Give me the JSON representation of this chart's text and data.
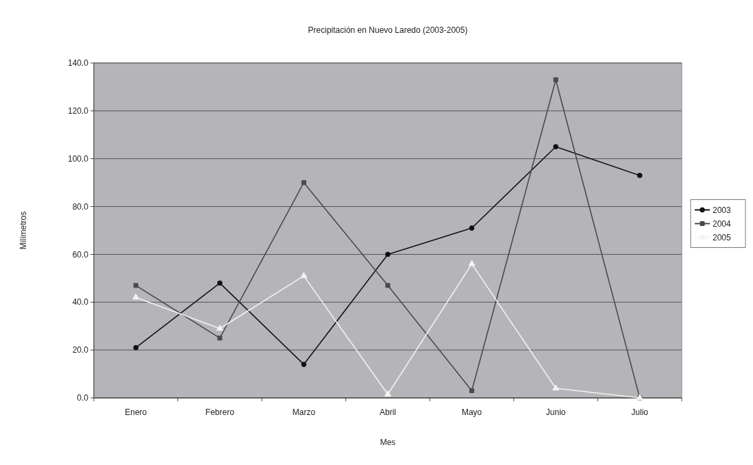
{
  "chart_data": {
    "type": "line",
    "title": "Precipitación en Nuevo Laredo (2003-2005)",
    "xlabel": "Mes",
    "ylabel": "Milímetros",
    "categories": [
      "Enero",
      "Febrero",
      "Marzo",
      "Abril",
      "Mayo",
      "Junio",
      "Julio"
    ],
    "series": [
      {
        "name": "2003",
        "color": "#111111",
        "marker": "circle",
        "values": [
          21,
          48,
          14,
          60,
          71,
          105,
          93
        ]
      },
      {
        "name": "2004",
        "color": "#4a4a4a",
        "marker": "square",
        "values": [
          47,
          25,
          90,
          47,
          3,
          133,
          0
        ]
      },
      {
        "name": "2005",
        "color": "#f2f2f2",
        "marker": "triangle",
        "values": [
          42,
          29,
          51,
          1.5,
          56,
          4,
          0
        ]
      }
    ],
    "ylim": [
      0,
      140
    ],
    "yticks": [
      {
        "value": 0,
        "label": "0.0"
      },
      {
        "value": 20,
        "label": "20.0"
      },
      {
        "value": 40,
        "label": "40.0"
      },
      {
        "value": 60,
        "label": "60.0"
      },
      {
        "value": 80,
        "label": "80.0"
      },
      {
        "value": 100,
        "label": "100.0"
      },
      {
        "value": 120,
        "label": "120.0"
      },
      {
        "value": 140,
        "label": "140.0"
      }
    ],
    "grid": "y",
    "legend": "right"
  }
}
